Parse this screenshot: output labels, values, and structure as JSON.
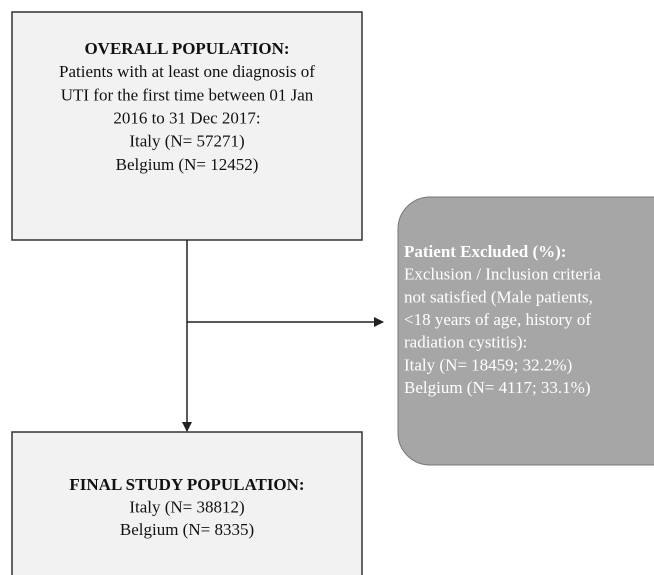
{
  "overall": {
    "title": "OVERALL POPULATION:",
    "lines": [
      "Patients with at least one diagnosis of",
      "UTI for the first time between 01 Jan",
      "2016 to 31 Dec 2017:",
      "Italy (N= 57271)",
      "Belgium (N= 12452)"
    ]
  },
  "excluded": {
    "title": "Patient Excluded (%):",
    "lines": [
      "Exclusion / Inclusion criteria",
      "not satisfied (Male patients,",
      "<18 years of age, history of",
      "radiation cystitis):",
      "Italy (N= 18459; 32.2%)",
      "Belgium (N= 4117; 33.1%)"
    ]
  },
  "final": {
    "title": "FINAL STUDY POPULATION:",
    "lines": [
      "Italy (N= 38812)",
      "Belgium (N= 8335)"
    ]
  }
}
